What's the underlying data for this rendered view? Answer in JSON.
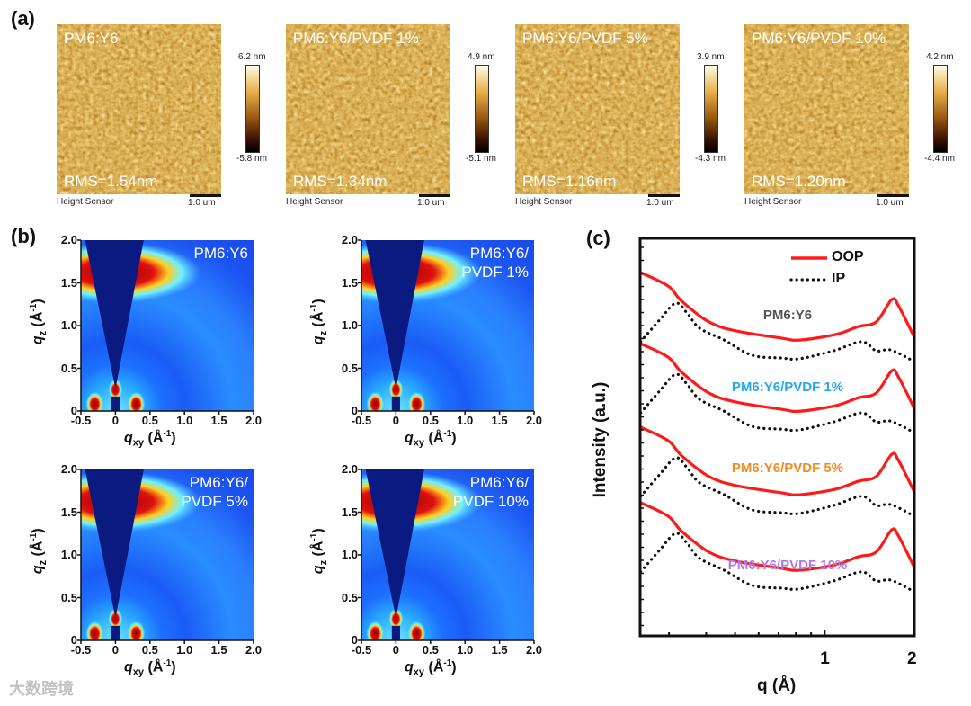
{
  "panel_labels": {
    "a": "(a)",
    "b": "(b)",
    "c": "(c)"
  },
  "afm": {
    "sensor_label": "Height Sensor",
    "scale_bar": "1.0 um",
    "colormap": [
      "#000000",
      "#3a1200",
      "#9a5a10",
      "#e8b04a",
      "#fffbe8"
    ],
    "images": [
      {
        "title": "PM6:Y6",
        "rms": "RMS=1.54nm",
        "max": "6.2 nm",
        "min": "-5.8 nm"
      },
      {
        "title": "PM6:Y6/PVDF 1%",
        "rms": "RMS=1.34nm",
        "max": "4.9 nm",
        "min": "-5.1 nm"
      },
      {
        "title": "PM6:Y6/PVDF 5%",
        "rms": "RMS=1.16nm",
        "max": "3.9 nm",
        "min": "-4.3 nm"
      },
      {
        "title": "PM6:Y6/PVDF 10%",
        "rms": "RMS=1.20nm",
        "max": "4.2 nm",
        "min": "-4.4 nm"
      }
    ]
  },
  "giwaxs": {
    "xlabel_main": "q",
    "xlabel_sub": "xy",
    "xlabel_unit": "(Å",
    "xlabel_exp": "-1",
    "close": ")",
    "ylabel_main": "q",
    "ylabel_sub": "z",
    "xticks": [
      "-0.5",
      "0",
      "0.5",
      "1.0",
      "1.5",
      "2.0"
    ],
    "yticks": [
      "0",
      "0.5",
      "1.0",
      "1.5",
      "2.0"
    ],
    "xlim": [
      -0.5,
      2.0
    ],
    "ylim": [
      0,
      2.0
    ],
    "panels": [
      {
        "title": "PM6:Y6"
      },
      {
        "title": "PM6:Y6/\nPVDF 1%"
      },
      {
        "title": "PM6:Y6/\nPVDF 5%"
      },
      {
        "title": "PM6:Y6/\nPVDF 10%"
      }
    ]
  },
  "chart_data": {
    "type": "line",
    "title": "",
    "xlabel": "q (Å)",
    "ylabel": "Intensity (a.u.)",
    "xscale": "log",
    "xlim": [
      0.24,
      2.0
    ],
    "ylim": [
      0,
      100
    ],
    "xticks": [
      "1",
      "2"
    ],
    "xtick_values": [
      1,
      2
    ],
    "legend": {
      "placement": "top-right",
      "entries": [
        {
          "label": "OOP",
          "style": "solid",
          "color": "#ff1a1a"
        },
        {
          "label": "IP",
          "style": "dotted",
          "color": "#111111"
        }
      ]
    },
    "base_profiles": {
      "q": [
        0.241,
        0.298,
        0.331,
        0.408,
        0.504,
        0.715,
        0.822,
        1.087,
        1.296,
        1.49,
        1.68,
        1.77,
        2.0
      ],
      "OOP": [
        91.4,
        88.0,
        84.2,
        79.0,
        76.7,
        74.9,
        74.4,
        75.8,
        77.8,
        79.0,
        84.6,
        83.0,
        75.1
      ],
      "q_ip": [
        0.241,
        0.28,
        0.316,
        0.345,
        0.38,
        0.46,
        0.57,
        0.715,
        0.822,
        1.07,
        1.33,
        1.49,
        1.67,
        2.0
      ],
      "IP": [
        74.0,
        79.6,
        83.7,
        81.2,
        77.4,
        74.4,
        70.6,
        69.9,
        69.7,
        71.7,
        74.0,
        71.7,
        71.9,
        69.0
      ]
    },
    "series": [
      {
        "name": "PM6:Y6",
        "label_color": "#555555",
        "offset": 0
      },
      {
        "name": "PM6:Y6/PVDF 1%",
        "label_color": "#2aa7e6",
        "offset": -17.9
      },
      {
        "name": "PM6:Y6/PVDF 5%",
        "label_color": "#f08c28",
        "offset": -38.9
      },
      {
        "name": "PM6:Y6/PVDF 10%",
        "label_color": "#b07be0",
        "offset": -57.9
      }
    ]
  },
  "watermark": "大数跨境"
}
